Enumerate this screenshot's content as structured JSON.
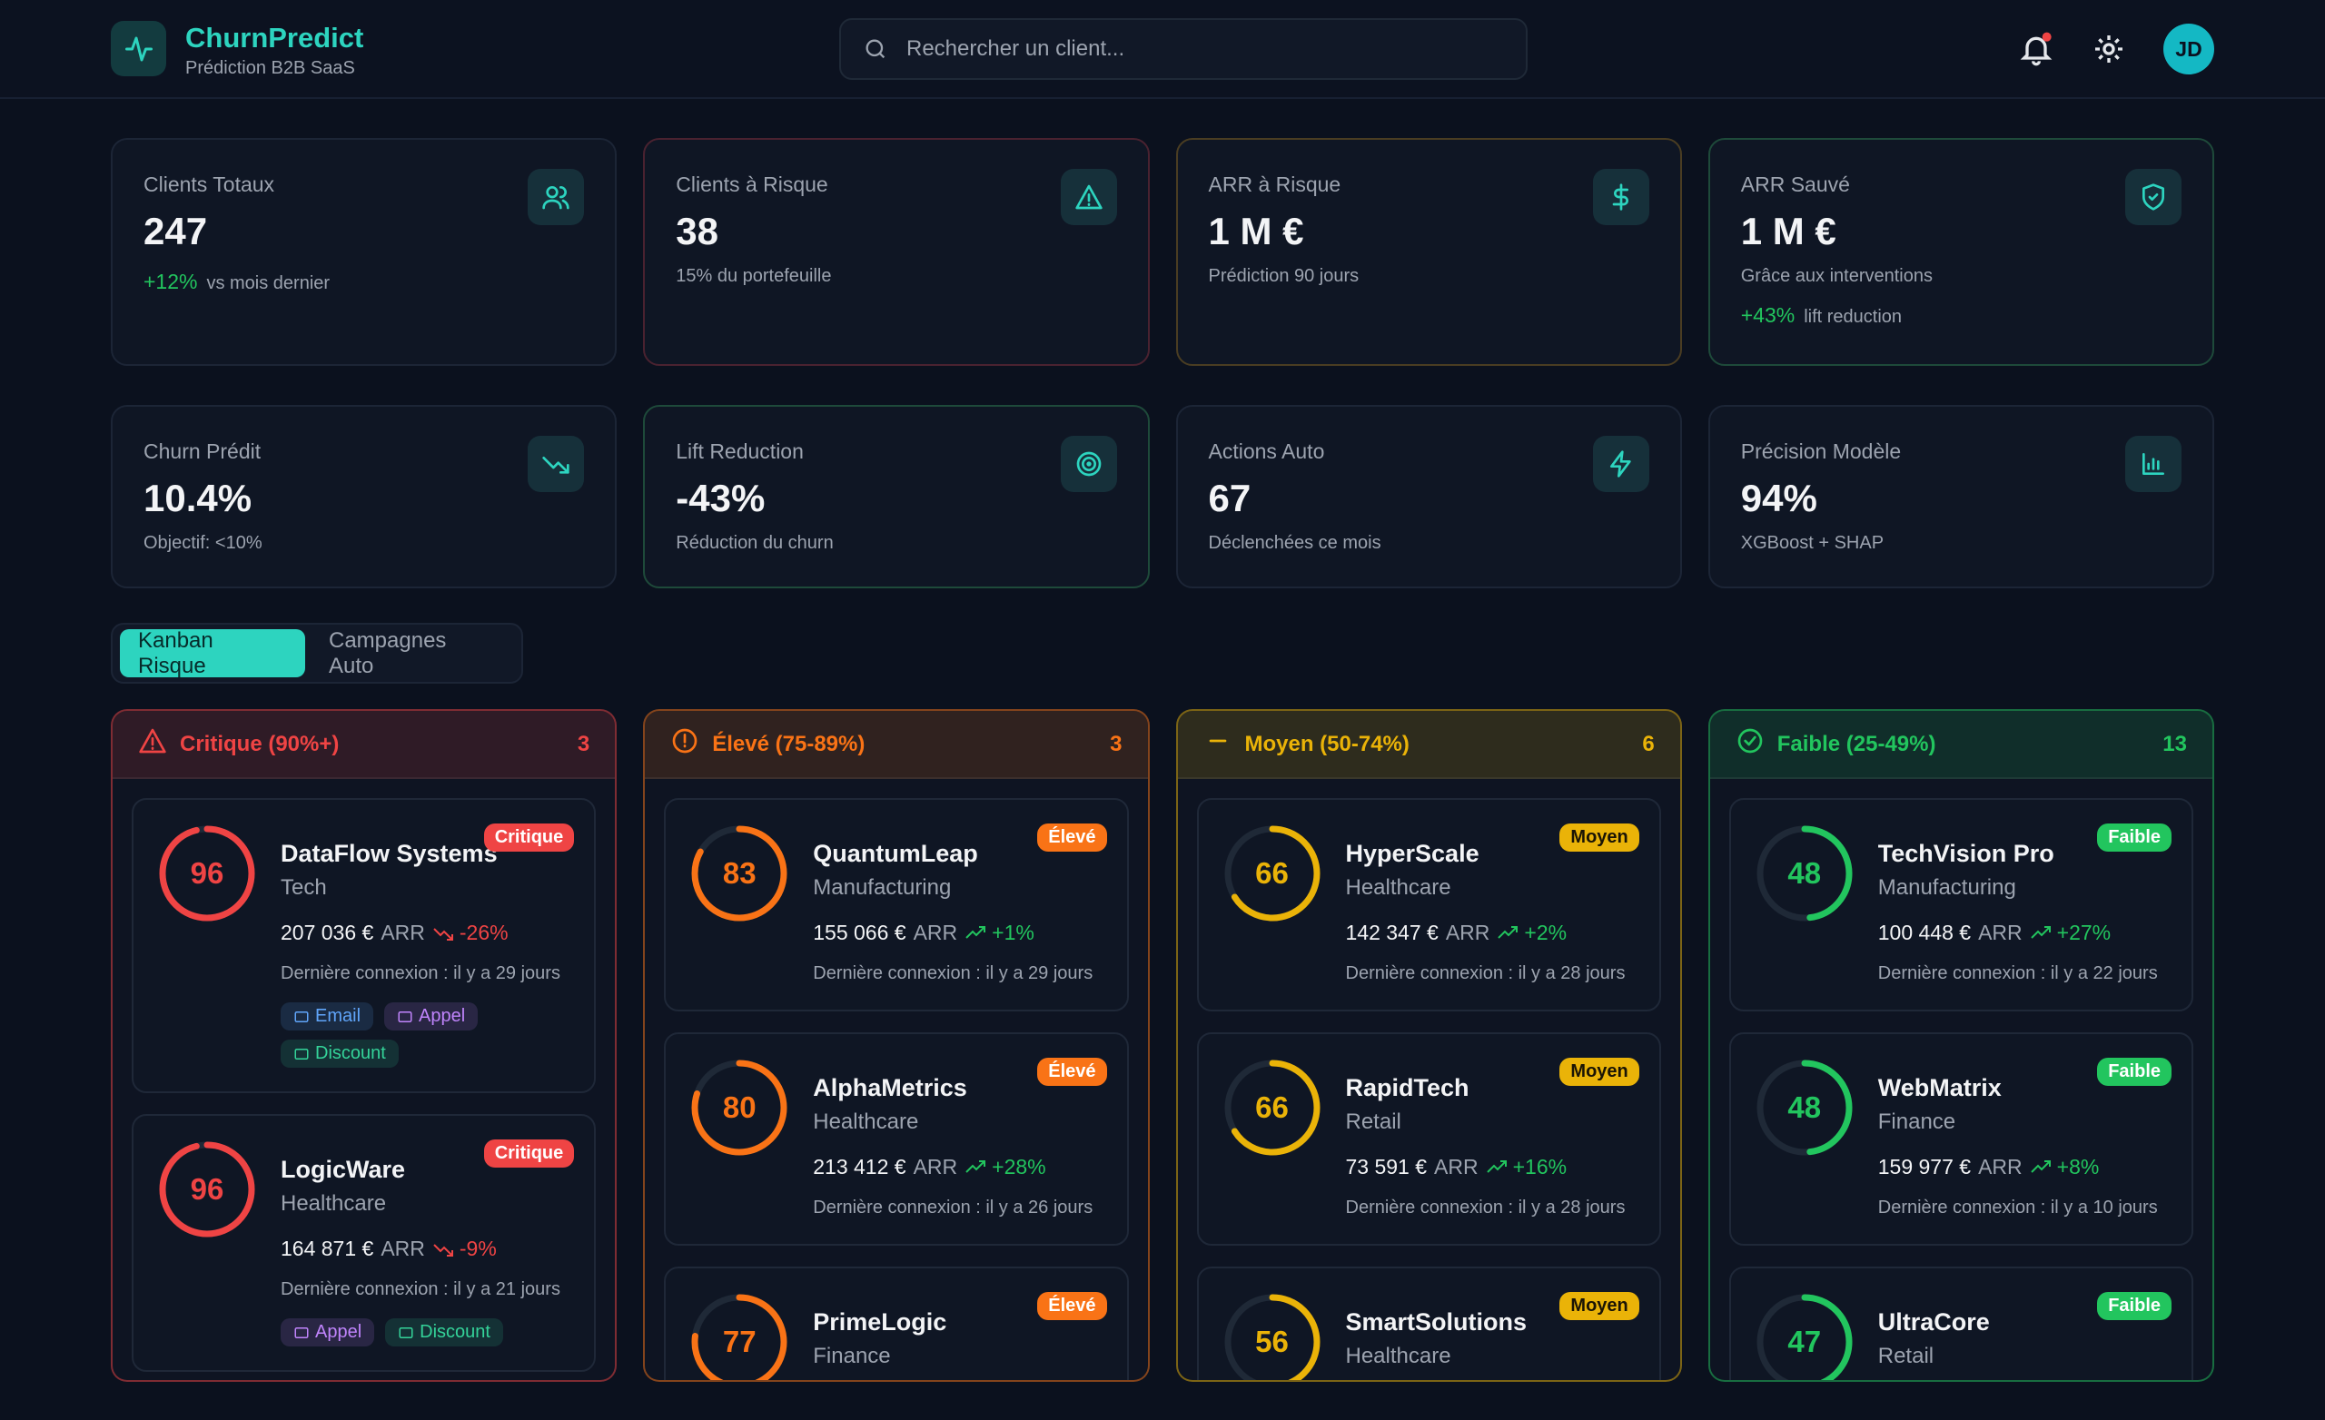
{
  "header": {
    "brand": "ChurnPredict",
    "subtitle": "Prédiction B2B SaaS",
    "search_placeholder": "Rechercher un client...",
    "avatar": "JD"
  },
  "kpis": [
    {
      "label": "Clients Totaux",
      "value": "247",
      "delta": "+12%",
      "delta_note": "vs mois dernier"
    },
    {
      "label": "Clients à Risque",
      "value": "38",
      "note": "15% du portefeuille"
    },
    {
      "label": "ARR à Risque",
      "value": "1 M €",
      "note": "Prédiction 90 jours"
    },
    {
      "label": "ARR Sauvé",
      "value": "1 M €",
      "note": "Grâce aux interventions",
      "delta": "+43%",
      "delta_note": "lift reduction"
    },
    {
      "label": "Churn Prédit",
      "value": "10.4%",
      "note": "Objectif: <10%"
    },
    {
      "label": "Lift Reduction",
      "value": "-43%",
      "note": "Réduction du churn"
    },
    {
      "label": "Actions Auto",
      "value": "67",
      "note": "Déclenchées ce mois"
    },
    {
      "label": "Précision Modèle",
      "value": "94%",
      "note": "XGBoost + SHAP"
    }
  ],
  "tabs": [
    "Kanban Risque",
    "Campagnes Auto"
  ],
  "columns": [
    {
      "title": "Critique (90%+)",
      "count": "3",
      "color": "#ef4444",
      "cards": [
        {
          "name": "DataFlow Systems",
          "badge": "Critique",
          "score": 96,
          "sector": "Tech",
          "arr": "207 036 €",
          "arr_unit": "ARR",
          "trend": "-26%",
          "last_login": "Dernière connexion : il y a 29 jours",
          "actions": [
            {
              "label": "Email",
              "color": "#60a5fa"
            },
            {
              "label": "Appel",
              "color": "#c084fc"
            },
            {
              "label": "Discount",
              "color": "#34d399"
            }
          ]
        },
        {
          "name": "LogicWare",
          "badge": "Critique",
          "score": 96,
          "sector": "Healthcare",
          "arr": "164 871 €",
          "arr_unit": "ARR",
          "trend": "-9%",
          "last_login": "Dernière connexion : il y a 21 jours",
          "actions": [
            {
              "label": "Appel",
              "color": "#c084fc"
            },
            {
              "label": "Discount",
              "color": "#34d399"
            }
          ]
        }
      ]
    },
    {
      "title": "Élevé (75-89%)",
      "count": "3",
      "color": "#f97316",
      "cards": [
        {
          "name": "QuantumLeap",
          "badge": "Élevé",
          "score": 83,
          "sector": "Manufacturing",
          "arr": "155 066 €",
          "arr_unit": "ARR",
          "trend": "+1%",
          "last_login": "Dernière connexion : il y a 29 jours"
        },
        {
          "name": "AlphaMetrics",
          "badge": "Élevé",
          "score": 80,
          "sector": "Healthcare",
          "arr": "213 412 €",
          "arr_unit": "ARR",
          "trend": "+28%",
          "last_login": "Dernière connexion : il y a 26 jours"
        },
        {
          "name": "PrimeLogic",
          "badge": "Élevé",
          "score": 77,
          "sector": "Finance"
        }
      ]
    },
    {
      "title": "Moyen (50-74%)",
      "count": "6",
      "color": "#eab308",
      "cards": [
        {
          "name": "HyperScale",
          "badge": "Moyen",
          "score": 66,
          "sector": "Healthcare",
          "arr": "142 347 €",
          "arr_unit": "ARR",
          "trend": "+2%",
          "last_login": "Dernière connexion : il y a 28 jours"
        },
        {
          "name": "RapidTech",
          "badge": "Moyen",
          "score": 66,
          "sector": "Retail",
          "arr": "73 591 €",
          "arr_unit": "ARR",
          "trend": "+16%",
          "last_login": "Dernière connexion : il y a 28 jours"
        },
        {
          "name": "SmartSolutions",
          "badge": "Moyen",
          "score": 56,
          "sector": "Healthcare"
        }
      ]
    },
    {
      "title": "Faible (25-49%)",
      "count": "13",
      "color": "#22c55e",
      "cards": [
        {
          "name": "TechVision Pro",
          "badge": "Faible",
          "score": 48,
          "sector": "Manufacturing",
          "arr": "100 448 €",
          "arr_unit": "ARR",
          "trend": "+27%",
          "last_login": "Dernière connexion : il y a 22 jours"
        },
        {
          "name": "WebMatrix",
          "badge": "Faible",
          "score": 48,
          "sector": "Finance",
          "arr": "159 977 €",
          "arr_unit": "ARR",
          "trend": "+8%",
          "last_login": "Dernière connexion : il y a 10 jours"
        },
        {
          "name": "UltraCore",
          "badge": "Faible",
          "score": 47,
          "sector": "Retail"
        }
      ]
    }
  ]
}
